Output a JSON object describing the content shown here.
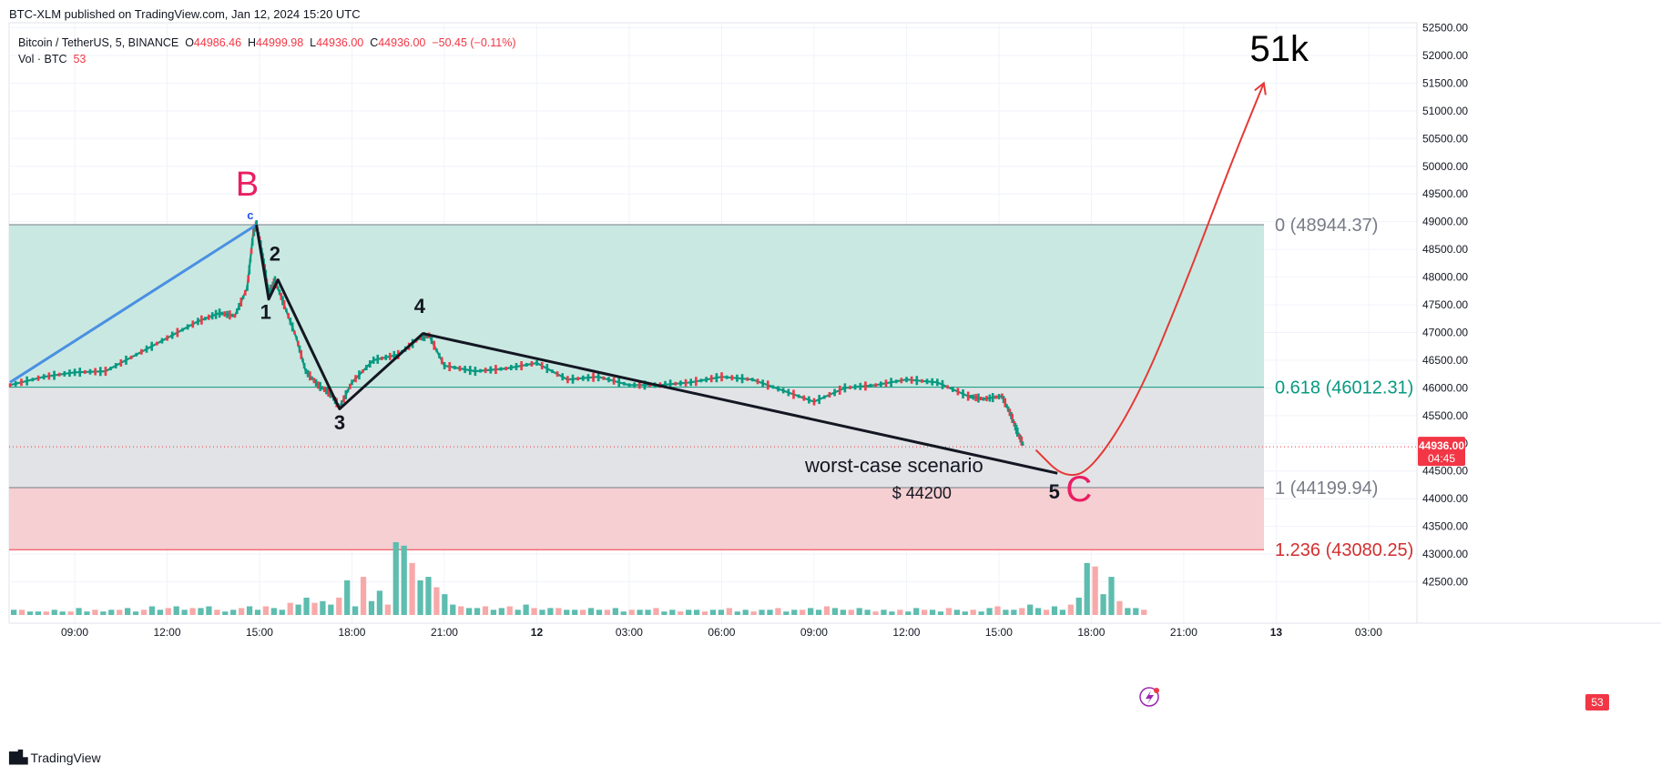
{
  "header": {
    "published": "BTC-XLM published on TradingView.com, Jan 12, 2024 15:20 UTC"
  },
  "legend": {
    "symbol": "Bitcoin / TetherUS, 5, BINANCE",
    "o_label": "O",
    "o_value": "44986.46",
    "h_label": "H",
    "h_value": "44999.98",
    "l_label": "L",
    "l_value": "44936.00",
    "c_label": "C",
    "c_value": "44936.00",
    "change": "−50.45 (−0.11%)",
    "vol_label": "Vol · BTC",
    "vol_value": "53"
  },
  "price_badge": {
    "price": "44936.00",
    "countdown": "04:45"
  },
  "volume_badge": "53",
  "footer": {
    "brand": "TradingView"
  },
  "colors": {
    "up": "#089981",
    "down": "#f23645",
    "zone_top": "#c9e8e1",
    "zone_mid": "#e2e3e6",
    "zone_bottom": "#f5cfd1",
    "wave_blue": "#4a90e2",
    "label_pink": "#e91e63"
  },
  "chart_data": {
    "type": "line",
    "y_axis": {
      "min": 42000,
      "max": 52500,
      "step": 500,
      "ticks": [
        "52500.00",
        "52000.00",
        "51500.00",
        "51000.00",
        "50500.00",
        "50000.00",
        "49500.00",
        "49000.00",
        "48500.00",
        "48000.00",
        "47500.00",
        "47000.00",
        "46500.00",
        "46000.00",
        "45500.00",
        "45000.00",
        "44500.00",
        "44000.00",
        "43500.00",
        "43000.00",
        "42500.00"
      ]
    },
    "x_axis": {
      "ticks": [
        {
          "label": "09:00",
          "t": 9
        },
        {
          "label": "12:00",
          "t": 12
        },
        {
          "label": "15:00",
          "t": 15
        },
        {
          "label": "18:00",
          "t": 18
        },
        {
          "label": "21:00",
          "t": 21
        },
        {
          "label": "12",
          "t": 24
        },
        {
          "label": "03:00",
          "t": 27
        },
        {
          "label": "06:00",
          "t": 30
        },
        {
          "label": "09:00",
          "t": 33
        },
        {
          "label": "12:00",
          "t": 36
        },
        {
          "label": "15:00",
          "t": 39
        },
        {
          "label": "18:00",
          "t": 42
        },
        {
          "label": "21:00",
          "t": 45
        },
        {
          "label": "13",
          "t": 48
        },
        {
          "label": "03:00",
          "t": 51
        }
      ]
    },
    "price_path": [
      [
        6.9,
        46050
      ],
      [
        8,
        46200
      ],
      [
        9,
        46280
      ],
      [
        10,
        46300
      ],
      [
        11,
        46600
      ],
      [
        12,
        46900
      ],
      [
        13,
        47200
      ],
      [
        13.7,
        47350
      ],
      [
        14.2,
        47300
      ],
      [
        14.6,
        47800
      ],
      [
        14.8,
        48800
      ],
      [
        14.9,
        48944
      ],
      [
        15.1,
        48400
      ],
      [
        15.3,
        47700
      ],
      [
        15.5,
        47950
      ],
      [
        15.8,
        47500
      ],
      [
        16.2,
        46900
      ],
      [
        16.5,
        46300
      ],
      [
        16.9,
        46050
      ],
      [
        17.3,
        45900
      ],
      [
        17.6,
        45650
      ],
      [
        18,
        46100
      ],
      [
        18.7,
        46500
      ],
      [
        19.5,
        46600
      ],
      [
        20.2,
        46900
      ],
      [
        20.5,
        46950
      ],
      [
        21,
        46400
      ],
      [
        22,
        46300
      ],
      [
        23,
        46350
      ],
      [
        24,
        46450
      ],
      [
        25,
        46150
      ],
      [
        26,
        46200
      ],
      [
        27,
        46050
      ],
      [
        28,
        46050
      ],
      [
        29,
        46100
      ],
      [
        30,
        46200
      ],
      [
        31,
        46150
      ],
      [
        32,
        45950
      ],
      [
        33,
        45750
      ],
      [
        34,
        46000
      ],
      [
        35,
        46050
      ],
      [
        36,
        46150
      ],
      [
        37,
        46100
      ],
      [
        38,
        45850
      ],
      [
        38.5,
        45800
      ],
      [
        39.1,
        45850
      ],
      [
        39.4,
        45500
      ],
      [
        39.6,
        45200
      ],
      [
        39.8,
        44960
      ]
    ],
    "wave_lines": [
      {
        "name": "blue",
        "points": [
          [
            6.9,
            46100
          ],
          [
            14.9,
            48944
          ]
        ]
      },
      {
        "name": "black",
        "points": [
          [
            14.9,
            48944
          ],
          [
            15.3,
            47600
          ],
          [
            15.6,
            47950
          ],
          [
            17.6,
            45620
          ],
          [
            20.3,
            46980
          ],
          [
            40.9,
            44460
          ]
        ]
      }
    ],
    "fib_levels": [
      {
        "label": "0 (48944.37)",
        "value": 48944.37
      },
      {
        "label": "0.618 (46012.31)",
        "value": 46012.31
      },
      {
        "label": "1 (44199.94)",
        "value": 44199.94
      },
      {
        "label": "1.236 (43080.25)",
        "value": 43080.25
      }
    ],
    "annotations": [
      {
        "text": "B",
        "t": 14.6,
        "price": 49470
      },
      {
        "text": "c",
        "t": 14.7,
        "price": 49040
      },
      {
        "text": "1",
        "t": 15.2,
        "price": 47250
      },
      {
        "text": "2",
        "t": 15.5,
        "price": 48300
      },
      {
        "text": "3",
        "t": 17.6,
        "price": 45250
      },
      {
        "text": "4",
        "t": 20.2,
        "price": 47350
      },
      {
        "text": "5",
        "t": 40.8,
        "price": 44000
      },
      {
        "text": "C",
        "t": 41.6,
        "price": 43950
      },
      {
        "text": "worst-case scenario",
        "t": 35.6,
        "price": 44480
      },
      {
        "text": "$ 44200",
        "t": 36.5,
        "price": 44000
      },
      {
        "text": "51k",
        "t": 48.1,
        "price": 51900
      }
    ],
    "projection": [
      [
        40.2,
        44880
      ],
      [
        41.1,
        44380
      ],
      [
        42.0,
        44500
      ],
      [
        43.5,
        45800
      ],
      [
        45.0,
        47800
      ],
      [
        46.5,
        50000
      ],
      [
        47.6,
        51500
      ]
    ],
    "volume": [
      3,
      3,
      2,
      2,
      2,
      3,
      2,
      2,
      4,
      2,
      3,
      2,
      3,
      3,
      4,
      2,
      3,
      5,
      3,
      4,
      5,
      3,
      4,
      4,
      5,
      3,
      2,
      3,
      4,
      5,
      3,
      5,
      4,
      3,
      7,
      6,
      10,
      7,
      8,
      6,
      10,
      20,
      5,
      22,
      8,
      14,
      6,
      42,
      40,
      30,
      20,
      22,
      16,
      12,
      6,
      5,
      4,
      4,
      5,
      3,
      4,
      5,
      3,
      6,
      4,
      3,
      4,
      4,
      3,
      3,
      3,
      4,
      3,
      3,
      4,
      2,
      3,
      3,
      3,
      4,
      2,
      3,
      2,
      3,
      3,
      2,
      3,
      3,
      4,
      2,
      3,
      2,
      3,
      3,
      4,
      2,
      3,
      3,
      4,
      3,
      5,
      4,
      3,
      3,
      4,
      3,
      2,
      3,
      2,
      3,
      2,
      4,
      3,
      3,
      2,
      4,
      3,
      2,
      3,
      2,
      4,
      5,
      3,
      3,
      4,
      6,
      4,
      3,
      5,
      3,
      6,
      10,
      30,
      28,
      12,
      22,
      8,
      4,
      4,
      3
    ]
  }
}
